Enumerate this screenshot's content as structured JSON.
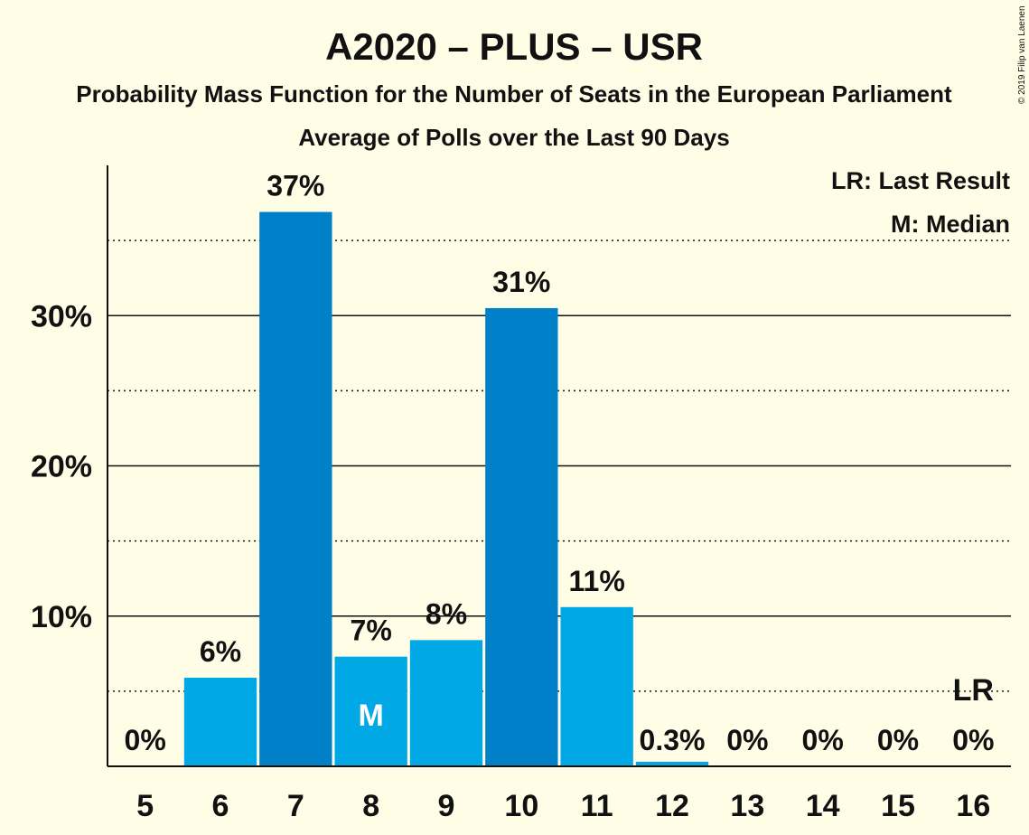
{
  "chart_data": {
    "type": "bar",
    "title": "A2020 – PLUS – USR",
    "subtitle": "Probability Mass Function for the Number of Seats in the European Parliament",
    "subtitle2": "Average of Polls over the Last 90 Days",
    "copyright": "© 2019 Filip van Laenen",
    "categories": [
      "5",
      "6",
      "7",
      "8",
      "9",
      "10",
      "11",
      "12",
      "13",
      "14",
      "15",
      "16"
    ],
    "values": [
      0,
      5.9,
      36.9,
      7.3,
      8.4,
      30.5,
      10.6,
      0.3,
      0,
      0,
      0,
      0
    ],
    "data_labels": [
      "0%",
      "6%",
      "37%",
      "7%",
      "8%",
      "31%",
      "11%",
      "0.3%",
      "0%",
      "0%",
      "0%",
      "0%"
    ],
    "ylim": [
      0,
      40
    ],
    "yticks": [
      10,
      20,
      30
    ],
    "ytick_labels": [
      "10%",
      "20%",
      "30%"
    ],
    "minor_gridlines": [
      5,
      15,
      25,
      35
    ],
    "bar_colors": [
      "#00A8E6",
      "#00A8E6",
      "#0080C8",
      "#00A8E6",
      "#00A8E6",
      "#0080C8",
      "#00A8E6",
      "#00A8E6",
      "#00A8E6",
      "#00A8E6",
      "#00A8E6",
      "#00A8E6"
    ],
    "median_category": "8",
    "median_label": "M",
    "last_result_category": "16",
    "last_result_label": "LR",
    "legend": [
      "LR: Last Result",
      "M: Median"
    ],
    "legend_position": "top-right",
    "grid": true
  }
}
